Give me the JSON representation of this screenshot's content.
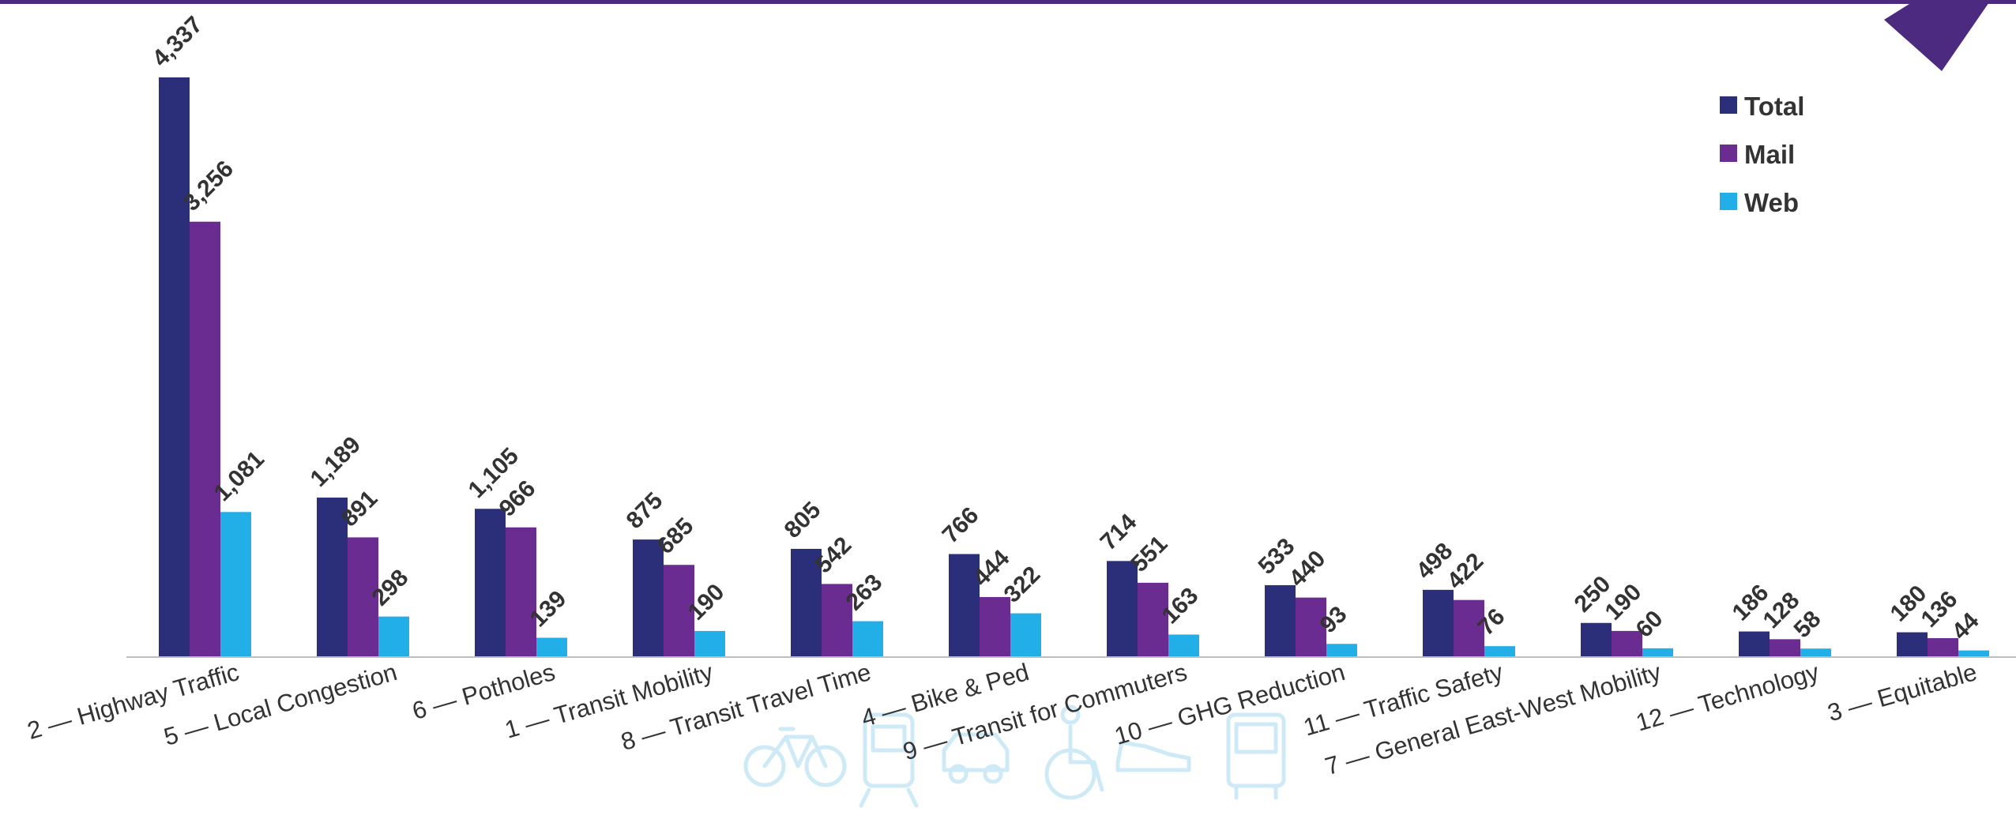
{
  "colors": {
    "stripe": "#4b2a80",
    "total": "#2b2f7a",
    "mail": "#6a2c91",
    "web": "#22aee6",
    "text": "#333333",
    "axis": "#bfbfbf",
    "watermark": "#cfeaf7"
  },
  "watermark_icons": [
    "bicycle-icon",
    "train-icon",
    "car-icon",
    "wheelchair-icon",
    "shoe-icon",
    "bus-icon"
  ],
  "chart_data": {
    "type": "bar",
    "categories": [
      "2 — Highway Traffic",
      "5 — Local Congestion",
      "6 — Potholes",
      "1 — Transit Mobility",
      "8 — Transit Travel Time",
      "4 — Bike & Ped",
      "9 — Transit for Commuters",
      "10 — GHG Reduction",
      "11 — Traffic Safety",
      "7 — General East-West Mobility",
      "12 — Technology",
      "3 — Equitable"
    ],
    "series": [
      {
        "name": "Total",
        "values": [
          4337,
          1189,
          1105,
          875,
          805,
          766,
          714,
          533,
          498,
          250,
          186,
          180
        ],
        "labels": [
          "4,337",
          "1,189",
          "1,105",
          "875",
          "805",
          "766",
          "714",
          "533",
          "498",
          "250",
          "186",
          "180"
        ]
      },
      {
        "name": "Mail",
        "values": [
          3256,
          891,
          966,
          685,
          542,
          444,
          551,
          440,
          422,
          190,
          128,
          136
        ],
        "labels": [
          "3,256",
          "891",
          "966",
          "685",
          "542",
          "444",
          "551",
          "440",
          "422",
          "190",
          "128",
          "136"
        ]
      },
      {
        "name": "Web",
        "values": [
          1081,
          298,
          139,
          190,
          263,
          322,
          163,
          93,
          76,
          60,
          58,
          44
        ],
        "labels": [
          "1,081",
          "298",
          "139",
          "190",
          "263",
          "322",
          "163",
          "93",
          "76",
          "60",
          "58",
          "44"
        ]
      }
    ],
    "ylim": [
      0,
      4337
    ],
    "grid": false,
    "legend_position": "top-right"
  }
}
